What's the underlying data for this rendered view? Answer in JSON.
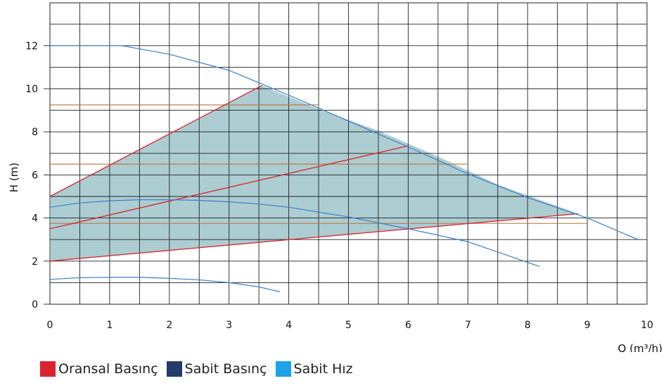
{
  "chart_data": {
    "type": "line",
    "title": "",
    "xlabel": "Q (m³/h)",
    "ylabel": "H (m)",
    "xlim": [
      0,
      10
    ],
    "ylim": [
      0,
      14
    ],
    "grid": true,
    "x_ticks": [
      0,
      1,
      2,
      3,
      4,
      5,
      6,
      7,
      8,
      9,
      10
    ],
    "y_ticks": [
      0,
      2,
      4,
      6,
      8,
      10,
      12
    ],
    "legend_position": "bottom-left",
    "legend": [
      {
        "label": "Oransal Basınç",
        "color": "#d9232e"
      },
      {
        "label": "Sabit Basınç",
        "color": "#233a6b"
      },
      {
        "label": "Sabit Hız",
        "color": "#1da1e8"
      }
    ],
    "operating_area": {
      "color": "#7fb2b8",
      "points": [
        [
          0,
          5
        ],
        [
          3.55,
          10.15
        ],
        [
          4.5,
          9.05
        ],
        [
          5.5,
          8.05
        ],
        [
          6.5,
          6.85
        ],
        [
          7.5,
          5.55
        ],
        [
          8.85,
          4.2
        ],
        [
          0,
          2
        ]
      ]
    },
    "proportional_pressure_lines": [
      {
        "color": "#d9232e",
        "points": [
          [
            0,
            5.0
          ],
          [
            3.55,
            10.15
          ]
        ]
      },
      {
        "color": "#d9232e",
        "points": [
          [
            0,
            3.5
          ],
          [
            6.0,
            7.35
          ]
        ]
      },
      {
        "color": "#d9232e",
        "points": [
          [
            0,
            2.0
          ],
          [
            8.85,
            4.2
          ]
        ]
      }
    ],
    "constant_pressure_lines": [
      {
        "color": "#c0703a",
        "y": 9.25,
        "x": [
          0,
          4.5
        ]
      },
      {
        "color": "#c0703a",
        "y": 6.5,
        "x": [
          0,
          7.0
        ]
      },
      {
        "color": "#c0703a",
        "y": 3.75,
        "x": [
          0,
          9.0
        ]
      }
    ],
    "constant_speed_curves": [
      {
        "color": "#3a7fc9",
        "points": [
          [
            0,
            12.0
          ],
          [
            1.2,
            12.0
          ],
          [
            2.0,
            11.6
          ],
          [
            3.0,
            10.85
          ],
          [
            4.0,
            9.7
          ],
          [
            5.0,
            8.5
          ],
          [
            6.0,
            7.3
          ],
          [
            7.0,
            6.05
          ],
          [
            8.0,
            4.95
          ],
          [
            9.0,
            4.0
          ],
          [
            9.85,
            3.0
          ]
        ]
      },
      {
        "color": "#3a7fc9",
        "points": [
          [
            0,
            4.5
          ],
          [
            0.5,
            4.7
          ],
          [
            1.0,
            4.8
          ],
          [
            1.5,
            4.85
          ],
          [
            2.0,
            4.85
          ],
          [
            2.5,
            4.82
          ],
          [
            3.0,
            4.75
          ],
          [
            3.5,
            4.65
          ],
          [
            4.0,
            4.5
          ],
          [
            5.0,
            4.05
          ],
          [
            6.0,
            3.5
          ],
          [
            7.0,
            2.9
          ],
          [
            8.2,
            1.75
          ]
        ]
      },
      {
        "color": "#3a7fc9",
        "points": [
          [
            0,
            1.15
          ],
          [
            0.5,
            1.23
          ],
          [
            1.0,
            1.25
          ],
          [
            1.5,
            1.25
          ],
          [
            2.0,
            1.2
          ],
          [
            2.5,
            1.13
          ],
          [
            3.0,
            1.0
          ],
          [
            3.5,
            0.8
          ],
          [
            3.85,
            0.58
          ]
        ]
      }
    ]
  }
}
